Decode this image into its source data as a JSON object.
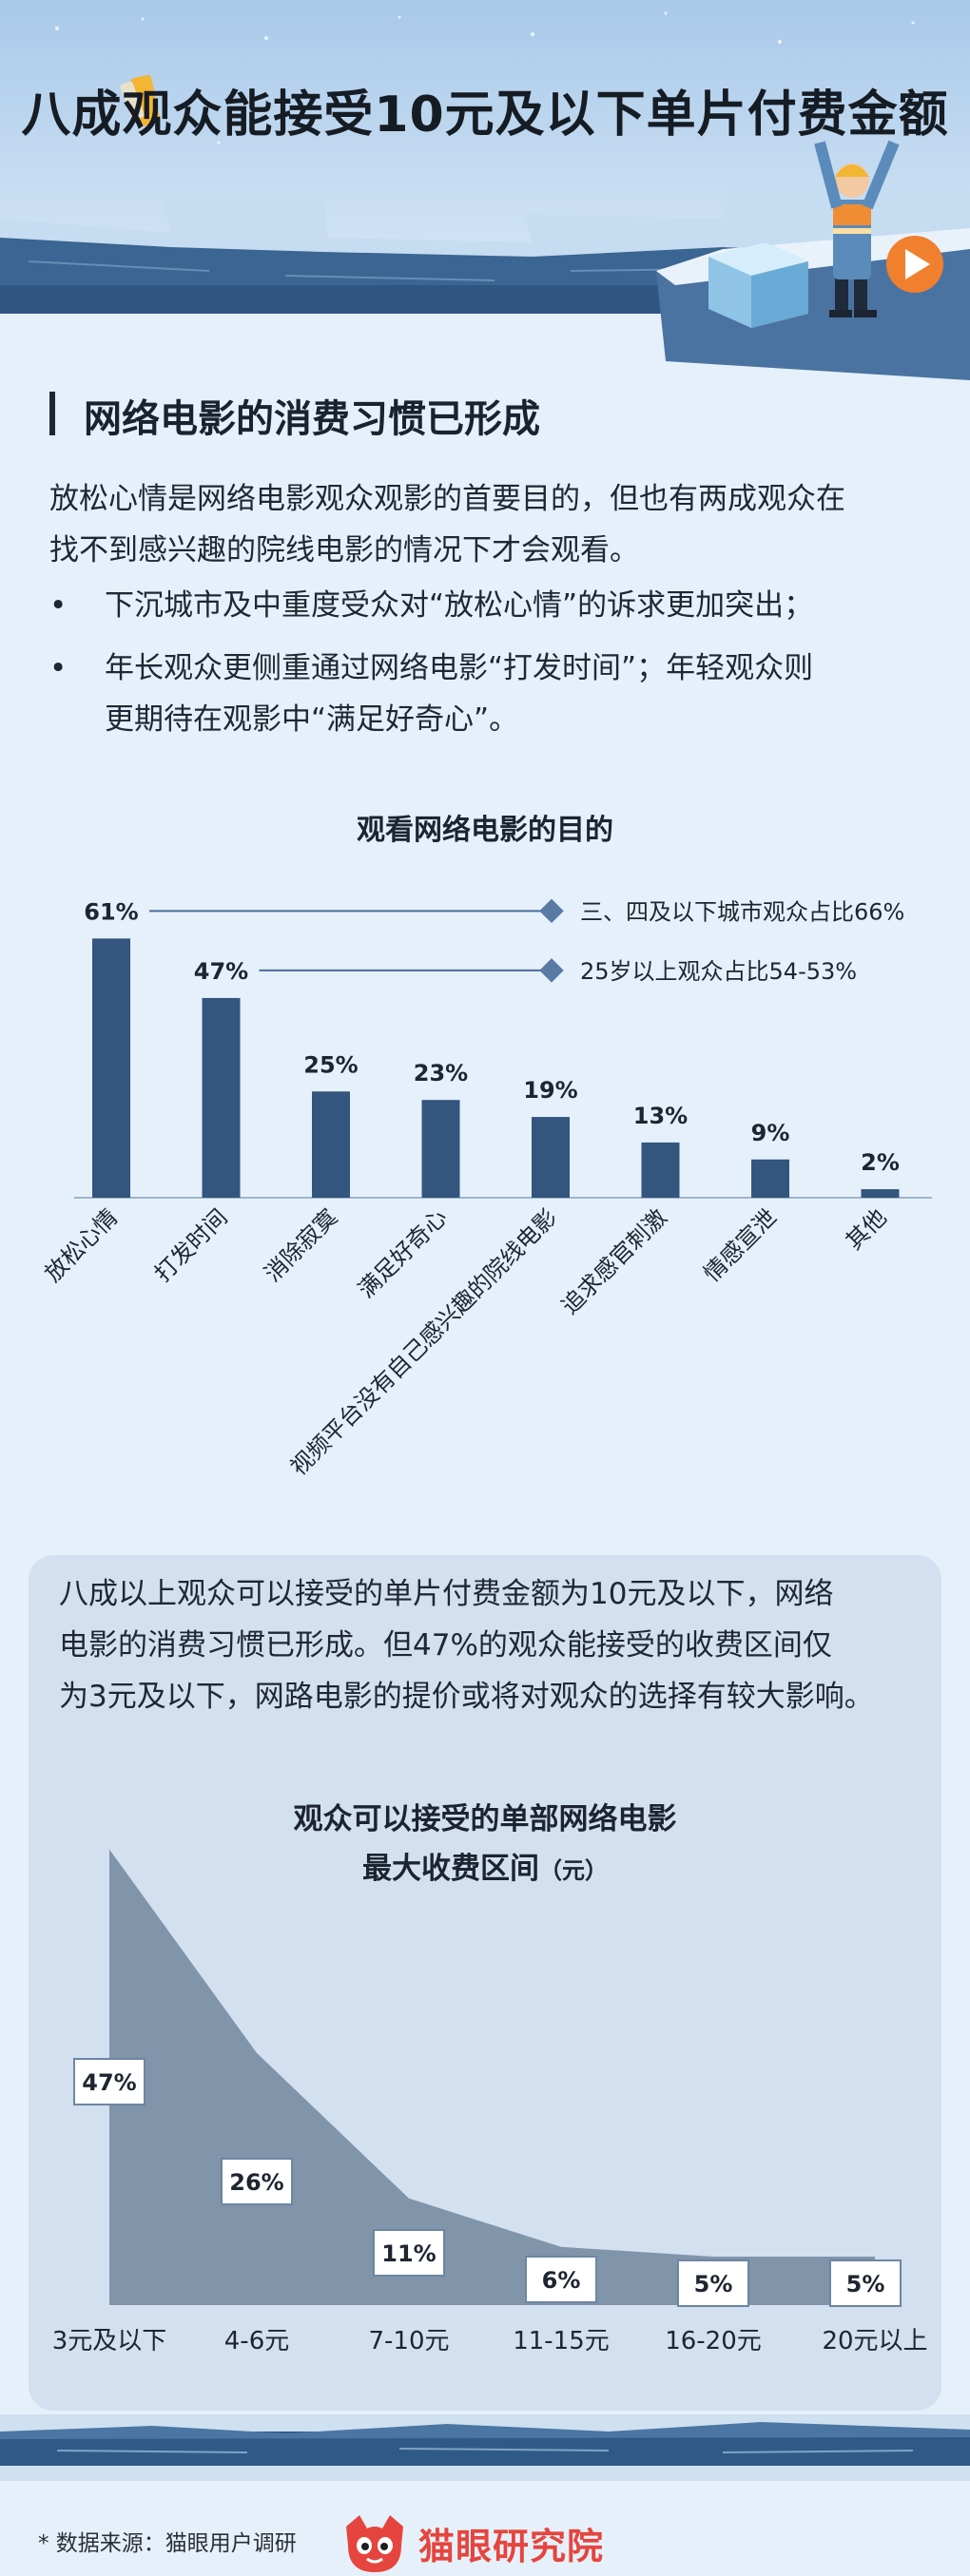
{
  "header": {
    "title": "八成观众能接受10元及以下单片付费金额"
  },
  "section": {
    "title": "网络电影的消费习惯已形成"
  },
  "intro": {
    "lines": [
      "放松心情是网络电影观众观影的首要目的，但也有两成观众在",
      "找不到感兴趣的院线电影的情况下才会观看。"
    ]
  },
  "bullets": {
    "symbol": "•",
    "items": [
      {
        "lines": [
          "下沉城市及中重度受众对“放松心情”的诉求更加突出；"
        ]
      },
      {
        "lines": [
          "年长观众更侧重通过网络电影“打发时间”；年轻观众则",
          "更期待在观影中“满足好奇心”。"
        ]
      }
    ]
  },
  "chart1": {
    "title": "观看网络电影的目的",
    "chart_data": {
      "type": "bar",
      "categories": [
        "放松心情",
        "打发时间",
        "消除寂寞",
        "满足好奇心",
        "视频平台没有自己感兴趣的院线电影",
        "追求感官刺激",
        "情感宣泄",
        "其他"
      ],
      "values": [
        61,
        47,
        25,
        23,
        19,
        13,
        9,
        2
      ],
      "value_labels": [
        "61%",
        "47%",
        "25%",
        "23%",
        "19%",
        "13%",
        "9%",
        "2%"
      ],
      "unit": "%",
      "annotations": [
        {
          "category": "放松心情",
          "text": "三、四及以下城市观众占比66%"
        },
        {
          "category": "打发时间",
          "text": "25岁以上观众占比54-53%"
        }
      ],
      "colors": {
        "bar": "#33557e",
        "annotation_line": "#4a6d9b",
        "annotation_marker": "#587aa4"
      }
    }
  },
  "card": {
    "lines": [
      "八成以上观众可以接受的单片付费金额为10元及以下，网络",
      "电影的消费习惯已形成。但47%的观众能接受的收费区间仅",
      "为3元及以下，网路电影的提价或将对观众的选择有较大影响。"
    ]
  },
  "chart2": {
    "title_line1": "观众可以接受的单部网络电影",
    "title_line2": "最大收费区间",
    "unit": "（元）",
    "chart_data": {
      "type": "area",
      "categories": [
        "3元及以下",
        "4-6元",
        "7-10元",
        "11-15元",
        "16-20元",
        "20元以上"
      ],
      "values": [
        47,
        26,
        11,
        6,
        5,
        5
      ],
      "value_labels": [
        "47%",
        "26%",
        "11%",
        "6%",
        "5%",
        "5%"
      ],
      "unit": "%",
      "colors": {
        "area": "#8094aa",
        "label_border": "#6d86a3"
      }
    }
  },
  "footer": {
    "source": "* 数据来源：猫眼用户调研",
    "brand": "猫眼研究院",
    "brand_color": "#e5453e"
  }
}
